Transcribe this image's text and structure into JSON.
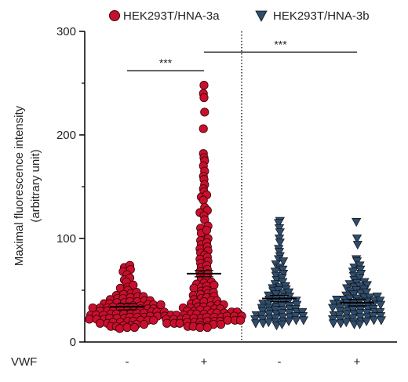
{
  "chart_data": {
    "type": "scatter",
    "ylabel_line1": "Maximal fluorescence intensity",
    "ylabel_line2": "(arbitrary unit)",
    "ylim": [
      0,
      300
    ],
    "yticks": [
      0,
      100,
      200,
      300
    ],
    "row_label": "VWF",
    "categories": [
      "-",
      "+",
      "-",
      "+"
    ],
    "colors": {
      "hna3a": "#c8102e",
      "hna3b": "#2e4d6e"
    },
    "series": [
      {
        "name": "HEK293T/HNA-3a",
        "marker": "circle",
        "groups": [
          {
            "vwf": "-",
            "mean": 34,
            "values": [
              74,
              72,
              70,
              68,
              65,
              62,
              60,
              58,
              55,
              53,
              52,
              50,
              48,
              47,
              46,
              45,
              44,
              44,
              43,
              42,
              42,
              41,
              40,
              40,
              39,
              39,
              38,
              38,
              37,
              37,
              36,
              36,
              36,
              35,
              35,
              34,
              34,
              34,
              33,
              33,
              33,
              32,
              32,
              32,
              31,
              31,
              31,
              30,
              30,
              30,
              29,
              29,
              29,
              28,
              28,
              28,
              27,
              27,
              27,
              26,
              26,
              26,
              25,
              25,
              25,
              24,
              24,
              24,
              23,
              23,
              23,
              22,
              22,
              22,
              21,
              21,
              21,
              20,
              20,
              19,
              19,
              18,
              18,
              17,
              17,
              16,
              16,
              15,
              15,
              14,
              14,
              13
            ]
          },
          {
            "vwf": "+",
            "mean": 66,
            "values": [
              248,
              240,
              236,
              222,
              206,
              182,
              178,
              175,
              170,
              165,
              160,
              157,
              152,
              148,
              145,
              142,
              140,
              137,
              130,
              127,
              125,
              122,
              118,
              112,
              110,
              108,
              105,
              100,
              98,
              96,
              94,
              92,
              90,
              88,
              86,
              84,
              82,
              80,
              78,
              76,
              74,
              72,
              70,
              68,
              66,
              64,
              62,
              60,
              58,
              57,
              56,
              55,
              54,
              53,
              52,
              50,
              49,
              48,
              47,
              46,
              45,
              44,
              43,
              42,
              41,
              40,
              40,
              39,
              38,
              37,
              36,
              36,
              35,
              34,
              34,
              33,
              33,
              32,
              32,
              31,
              31,
              30,
              30,
              29,
              29,
              28,
              28,
              28,
              27,
              27,
              27,
              26,
              26,
              26,
              25,
              25,
              25,
              24,
              24,
              24,
              23,
              23,
              23,
              22,
              22,
              22,
              21,
              21,
              21,
              20,
              20,
              20,
              19,
              19,
              19,
              18,
              18,
              18,
              17,
              17,
              16,
              16,
              15,
              15,
              14,
              14
            ]
          }
        ]
      },
      {
        "name": "HEK293T/HNA-3b",
        "marker": "triangle-down",
        "groups": [
          {
            "vwf": "-",
            "mean": 42,
            "values": [
              117,
              115,
              110,
              106,
              100,
              96,
              90,
              87,
              83,
              80,
              78,
              75,
              72,
              70,
              68,
              66,
              64,
              62,
              60,
              58,
              56,
              54,
              53,
              52,
              51,
              50,
              49,
              48,
              47,
              46,
              45,
              44,
              43,
              42,
              41,
              40,
              40,
              39,
              38,
              37,
              37,
              36,
              35,
              35,
              34,
              33,
              33,
              32,
              32,
              31,
              31,
              30,
              30,
              29,
              29,
              28,
              28,
              27,
              27,
              26,
              26,
              25,
              25,
              24,
              24,
              23,
              23,
              22,
              22,
              21,
              21,
              20,
              20,
              19,
              19,
              18,
              18,
              17,
              16
            ]
          },
          {
            "vwf": "+",
            "mean": 38,
            "values": [
              116,
              100,
              94,
              80,
              78,
              74,
              72,
              70,
              68,
              66,
              64,
              62,
              60,
              58,
              57,
              56,
              55,
              54,
              53,
              52,
              51,
              50,
              49,
              48,
              47,
              46,
              45,
              44,
              43,
              43,
              42,
              42,
              41,
              41,
              40,
              40,
              39,
              39,
              38,
              38,
              37,
              37,
              36,
              36,
              35,
              35,
              34,
              34,
              33,
              33,
              32,
              32,
              31,
              31,
              30,
              30,
              29,
              29,
              28,
              28,
              27,
              27,
              26,
              26,
              25,
              25,
              24,
              24,
              23,
              23,
              22,
              22,
              21,
              21,
              20,
              20,
              19,
              19,
              18,
              18,
              17,
              17
            ]
          }
        ]
      }
    ],
    "significance": [
      {
        "label": "***",
        "from_group": 0,
        "to_group": 1,
        "y": 262
      },
      {
        "label": "***",
        "from_group": 1,
        "to_group": 3,
        "y": 280
      }
    ],
    "legend_position": "top"
  }
}
